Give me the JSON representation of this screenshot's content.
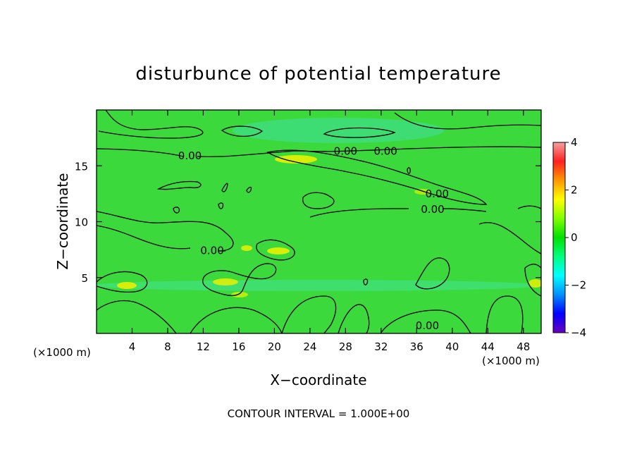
{
  "chart_data": {
    "type": "heatmap",
    "title": "disturbunce of potential temperature",
    "xlabel": "X−coordinate",
    "ylabel": "Z−coordinate",
    "x_unit": "(×1000 m)",
    "z_unit": "(×1000 m)",
    "xlim": [
      0,
      50
    ],
    "ylim": [
      0,
      20
    ],
    "x_ticks": [
      4,
      8,
      12,
      16,
      20,
      24,
      28,
      32,
      36,
      40,
      44,
      48
    ],
    "x_tick_labels": [
      "4",
      "8",
      "12",
      "16",
      "20",
      "24",
      "28",
      "32",
      "36",
      "40",
      "44",
      "48"
    ],
    "y_ticks": [
      5,
      10,
      15
    ],
    "y_tick_labels": [
      "5",
      "10",
      "15"
    ],
    "colorbar": {
      "range": [
        -4,
        4
      ],
      "ticks": [
        4,
        2,
        0,
        -2,
        -4
      ],
      "tick_labels": [
        "4",
        "2",
        "0",
        "−2",
        "−4"
      ],
      "colors": [
        "#f5a0a0",
        "#ff2020",
        "#ff9900",
        "#ffff00",
        "#80ff00",
        "#00e000",
        "#00ff80",
        "#00ffff",
        "#0090ff",
        "#0000ff",
        "#6a00c0"
      ]
    },
    "background_color": "#3cd93c",
    "contour_labels": [
      {
        "text": "0.00",
        "x": 10.5,
        "z": 15.9
      },
      {
        "text": "0.00",
        "x": 28.0,
        "z": 16.3
      },
      {
        "text": "0.00",
        "x": 32.5,
        "z": 16.3
      },
      {
        "text": "0.00",
        "x": 38.3,
        "z": 12.5
      },
      {
        "text": "0.00",
        "x": 37.8,
        "z": 11.1
      },
      {
        "text": "0.00",
        "x": 13.0,
        "z": 7.4
      },
      {
        "text": "0.00",
        "x": 37.2,
        "z": 0.7
      }
    ],
    "contour_interval_text": "CONTOUR INTERVAL = 1.000E+00"
  }
}
